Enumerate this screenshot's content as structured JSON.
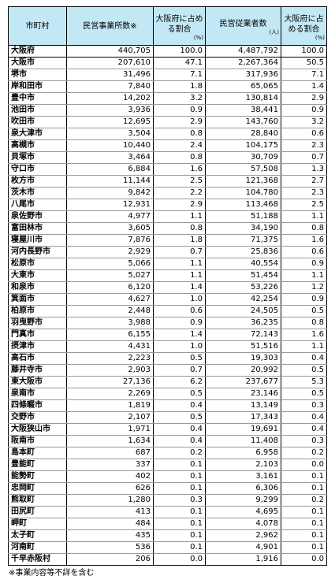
{
  "header": {
    "col_municipality": "市町村",
    "col_establishments": "民営事業所数※",
    "col_est_share": "大阪府に占める割合",
    "col_est_share_unit": "(%)",
    "col_employees": "民営従業者数",
    "col_employees_unit": "(人)",
    "col_emp_share": "大阪府に占める割合",
    "col_emp_share_unit": "(%)"
  },
  "rows": [
    {
      "name": "大阪府",
      "est": "440,705",
      "est_pct": "100.0",
      "emp": "4,487,792",
      "emp_pct": "100.0"
    },
    {
      "name": "大阪市",
      "est": "207,610",
      "est_pct": "47.1",
      "emp": "2,267,364",
      "emp_pct": "50.5"
    },
    {
      "name": "堺市",
      "est": "31,496",
      "est_pct": "7.1",
      "emp": "317,936",
      "emp_pct": "7.1"
    },
    {
      "name": "岸和田市",
      "est": "7,840",
      "est_pct": "1.8",
      "emp": "65,065",
      "emp_pct": "1.4"
    },
    {
      "name": "豊中市",
      "est": "14,202",
      "est_pct": "3.2",
      "emp": "130,814",
      "emp_pct": "2.9"
    },
    {
      "name": "池田市",
      "est": "3,936",
      "est_pct": "0.9",
      "emp": "38,441",
      "emp_pct": "0.9"
    },
    {
      "name": "吹田市",
      "est": "12,695",
      "est_pct": "2.9",
      "emp": "143,760",
      "emp_pct": "3.2"
    },
    {
      "name": "泉大津市",
      "est": "3,504",
      "est_pct": "0.8",
      "emp": "28,840",
      "emp_pct": "0.6"
    },
    {
      "name": "高槻市",
      "est": "10,440",
      "est_pct": "2.4",
      "emp": "104,175",
      "emp_pct": "2.3"
    },
    {
      "name": "貝塚市",
      "est": "3,464",
      "est_pct": "0.8",
      "emp": "30,709",
      "emp_pct": "0.7"
    },
    {
      "name": "守口市",
      "est": "6,884",
      "est_pct": "1.6",
      "emp": "57,508",
      "emp_pct": "1.3"
    },
    {
      "name": "枚方市",
      "est": "11,144",
      "est_pct": "2.5",
      "emp": "121,368",
      "emp_pct": "2.7"
    },
    {
      "name": "茨木市",
      "est": "9,842",
      "est_pct": "2.2",
      "emp": "104,780",
      "emp_pct": "2.3"
    },
    {
      "name": "八尾市",
      "est": "12,931",
      "est_pct": "2.9",
      "emp": "113,468",
      "emp_pct": "2.5"
    },
    {
      "name": "泉佐野市",
      "est": "4,977",
      "est_pct": "1.1",
      "emp": "51,188",
      "emp_pct": "1.1"
    },
    {
      "name": "富田林市",
      "est": "3,605",
      "est_pct": "0.8",
      "emp": "34,190",
      "emp_pct": "0.8"
    },
    {
      "name": "寝屋川市",
      "est": "7,876",
      "est_pct": "1.8",
      "emp": "71,375",
      "emp_pct": "1.6"
    },
    {
      "name": "河内長野市",
      "est": "2,929",
      "est_pct": "0.7",
      "emp": "25,836",
      "emp_pct": "0.6"
    },
    {
      "name": "松原市",
      "est": "5,066",
      "est_pct": "1.1",
      "emp": "40,554",
      "emp_pct": "0.9"
    },
    {
      "name": "大東市",
      "est": "5,027",
      "est_pct": "1.1",
      "emp": "51,454",
      "emp_pct": "1.1"
    },
    {
      "name": "和泉市",
      "est": "6,120",
      "est_pct": "1.4",
      "emp": "53,226",
      "emp_pct": "1.2"
    },
    {
      "name": "箕面市",
      "est": "4,627",
      "est_pct": "1.0",
      "emp": "42,254",
      "emp_pct": "0.9"
    },
    {
      "name": "柏原市",
      "est": "2,448",
      "est_pct": "0.6",
      "emp": "24,505",
      "emp_pct": "0.5"
    },
    {
      "name": "羽曳野市",
      "est": "3,988",
      "est_pct": "0.9",
      "emp": "36,235",
      "emp_pct": "0.8"
    },
    {
      "name": "門真市",
      "est": "6,155",
      "est_pct": "1.4",
      "emp": "72,143",
      "emp_pct": "1.6"
    },
    {
      "name": "摂津市",
      "est": "4,431",
      "est_pct": "1.0",
      "emp": "51,516",
      "emp_pct": "1.1"
    },
    {
      "name": "高石市",
      "est": "2,223",
      "est_pct": "0.5",
      "emp": "19,303",
      "emp_pct": "0.4"
    },
    {
      "name": "藤井寺市",
      "est": "2,903",
      "est_pct": "0.7",
      "emp": "20,992",
      "emp_pct": "0.5"
    },
    {
      "name": "東大阪市",
      "est": "27,136",
      "est_pct": "6.2",
      "emp": "237,677",
      "emp_pct": "5.3"
    },
    {
      "name": "泉南市",
      "est": "2,269",
      "est_pct": "0.5",
      "emp": "23,146",
      "emp_pct": "0.5"
    },
    {
      "name": "四條畷市",
      "est": "1,819",
      "est_pct": "0.4",
      "emp": "13,149",
      "emp_pct": "0.3"
    },
    {
      "name": "交野市",
      "est": "2,107",
      "est_pct": "0.5",
      "emp": "17,343",
      "emp_pct": "0.4"
    },
    {
      "name": "大阪狭山市",
      "est": "1,971",
      "est_pct": "0.4",
      "emp": "19,691",
      "emp_pct": "0.4"
    },
    {
      "name": "阪南市",
      "est": "1,634",
      "est_pct": "0.4",
      "emp": "11,408",
      "emp_pct": "0.3"
    },
    {
      "name": "島本町",
      "est": "687",
      "est_pct": "0.2",
      "emp": "6,958",
      "emp_pct": "0.2"
    },
    {
      "name": "豊能町",
      "est": "337",
      "est_pct": "0.1",
      "emp": "2,103",
      "emp_pct": "0.0"
    },
    {
      "name": "能勢町",
      "est": "402",
      "est_pct": "0.1",
      "emp": "3,161",
      "emp_pct": "0.1"
    },
    {
      "name": "忠岡町",
      "est": "626",
      "est_pct": "0.1",
      "emp": "6,306",
      "emp_pct": "0.1"
    },
    {
      "name": "熊取町",
      "est": "1,280",
      "est_pct": "0.3",
      "emp": "9,299",
      "emp_pct": "0.2"
    },
    {
      "name": "田尻町",
      "est": "413",
      "est_pct": "0.1",
      "emp": "4,695",
      "emp_pct": "0.1"
    },
    {
      "name": "岬町",
      "est": "484",
      "est_pct": "0.1",
      "emp": "4,078",
      "emp_pct": "0.1"
    },
    {
      "name": "太子町",
      "est": "435",
      "est_pct": "0.1",
      "emp": "2,962",
      "emp_pct": "0.1"
    },
    {
      "name": "河南町",
      "est": "536",
      "est_pct": "0.1",
      "emp": "4,901",
      "emp_pct": "0.1"
    },
    {
      "name": "千早赤阪村",
      "est": "206",
      "est_pct": "0.0",
      "emp": "1,916",
      "emp_pct": "0.0"
    }
  ],
  "footnote": "※事業内容等不詳を含む"
}
